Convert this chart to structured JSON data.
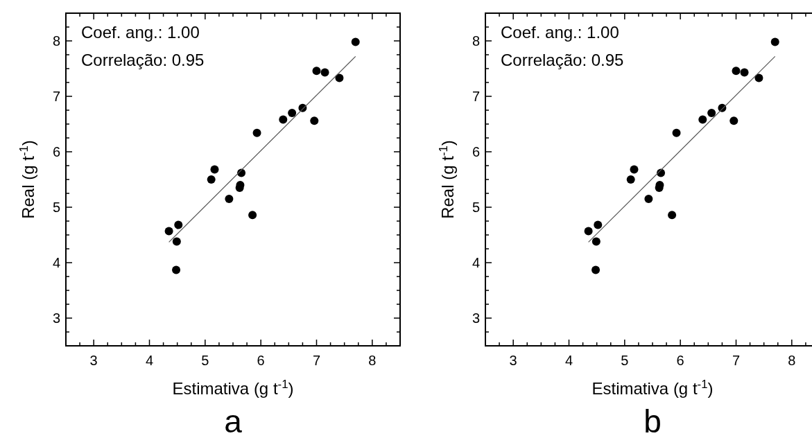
{
  "chart_data": [
    {
      "type": "scatter",
      "title": "a",
      "xlabel": "Estimativa (g t$^{-1}$)",
      "ylabel": "Real (g t$^{-1}$)",
      "annotations": [
        "Coef. ang.: 1.00",
        "Correlação: 0.95"
      ],
      "xlim": [
        2.5,
        8.5
      ],
      "ylim": [
        2.5,
        8.5
      ],
      "xticks": [
        {
          "value": 2.5,
          "label": null
        },
        {
          "value": 2.75,
          "label": null
        },
        3,
        {
          "value": 3.25,
          "label": null
        },
        {
          "value": 3.5,
          "label": null
        },
        {
          "value": 3.75,
          "label": null
        },
        4,
        {
          "value": 4.25,
          "label": null
        },
        {
          "value": 4.5,
          "label": null
        },
        {
          "value": 4.75,
          "label": null
        },
        5,
        {
          "value": 5.25,
          "label": null
        },
        {
          "value": 5.5,
          "label": null
        },
        {
          "value": 5.75,
          "label": null
        },
        6,
        {
          "value": 6.25,
          "label": null
        },
        {
          "value": 6.5,
          "label": null
        },
        {
          "value": 6.75,
          "label": null
        },
        7,
        {
          "value": 7.25,
          "label": null
        },
        {
          "value": 7.5,
          "label": null
        },
        {
          "value": 7.75,
          "label": null
        },
        8,
        {
          "value": 8.25,
          "label": null
        },
        {
          "value": 8.5,
          "label": null
        }
      ],
      "yticks": [
        {
          "value": 2.5,
          "label": null
        },
        {
          "value": 2.75,
          "label": null
        },
        3,
        {
          "value": 3.25,
          "label": null
        },
        {
          "value": 3.5,
          "label": null
        },
        {
          "value": 3.75,
          "label": null
        },
        4,
        {
          "value": 4.25,
          "label": null
        },
        {
          "value": 4.5,
          "label": null
        },
        {
          "value": 4.75,
          "label": null
        },
        5,
        {
          "value": 5.25,
          "label": null
        },
        {
          "value": 5.5,
          "label": null
        },
        {
          "value": 5.75,
          "label": null
        },
        6,
        {
          "value": 6.25,
          "label": null
        },
        {
          "value": 6.5,
          "label": null
        },
        {
          "value": 6.75,
          "label": null
        },
        7,
        {
          "value": 7.25,
          "label": null
        },
        {
          "value": 7.5,
          "label": null
        },
        {
          "value": 7.75,
          "label": null
        },
        8,
        {
          "value": 8.25,
          "label": null
        },
        {
          "value": 8.5,
          "label": null
        }
      ],
      "grid": false,
      "marker": "circle",
      "series": [
        {
          "color": "#000000",
          "x": [
            4.35,
            4.52,
            4.49,
            4.48,
            5.11,
            5.17,
            5.43,
            5.62,
            5.63,
            5.65,
            5.85,
            5.93,
            6.4,
            6.56,
            6.75,
            6.96,
            7.0,
            7.15,
            7.41,
            7.7
          ],
          "values": [
            4.57,
            4.68,
            4.38,
            3.87,
            5.5,
            5.68,
            5.15,
            5.35,
            5.4,
            5.62,
            4.86,
            6.34,
            6.58,
            6.7,
            6.79,
            6.56,
            7.46,
            7.43,
            7.33,
            7.98
          ]
        },
        {
          "type": "line",
          "color": "#555555",
          "marker": "none",
          "x": [
            4.35,
            7.7
          ],
          "values": [
            4.37,
            7.72
          ]
        }
      ]
    },
    {
      "type": "scatter",
      "title": "b",
      "xlabel": "Estimativa (g t$^{-1}$)",
      "ylabel": "Real (g t$^{-1}$)",
      "annotations": [
        "Coef. ang.: 1.00",
        "Correlação: 0.95"
      ],
      "xlim": [
        2.5,
        8.5
      ],
      "ylim": [
        2.5,
        8.5
      ],
      "xticks": [
        {
          "value": 2.5,
          "label": null
        },
        {
          "value": 2.75,
          "label": null
        },
        3,
        {
          "value": 3.25,
          "label": null
        },
        {
          "value": 3.5,
          "label": null
        },
        {
          "value": 3.75,
          "label": null
        },
        4,
        {
          "value": 4.25,
          "label": null
        },
        {
          "value": 4.5,
          "label": null
        },
        {
          "value": 4.75,
          "label": null
        },
        5,
        {
          "value": 5.25,
          "label": null
        },
        {
          "value": 5.5,
          "label": null
        },
        {
          "value": 5.75,
          "label": null
        },
        6,
        {
          "value": 6.25,
          "label": null
        },
        {
          "value": 6.5,
          "label": null
        },
        {
          "value": 6.75,
          "label": null
        },
        7,
        {
          "value": 7.25,
          "label": null
        },
        {
          "value": 7.5,
          "label": null
        },
        {
          "value": 7.75,
          "label": null
        },
        8,
        {
          "value": 8.25,
          "label": null
        },
        {
          "value": 8.5,
          "label": null
        }
      ],
      "yticks": [
        {
          "value": 2.5,
          "label": null
        },
        {
          "value": 2.75,
          "label": null
        },
        3,
        {
          "value": 3.25,
          "label": null
        },
        {
          "value": 3.5,
          "label": null
        },
        {
          "value": 3.75,
          "label": null
        },
        4,
        {
          "value": 4.25,
          "label": null
        },
        {
          "value": 4.5,
          "label": null
        },
        {
          "value": 4.75,
          "label": null
        },
        5,
        {
          "value": 5.25,
          "label": null
        },
        {
          "value": 5.5,
          "label": null
        },
        {
          "value": 5.75,
          "label": null
        },
        6,
        {
          "value": 6.25,
          "label": null
        },
        {
          "value": 6.5,
          "label": null
        },
        {
          "value": 6.75,
          "label": null
        },
        7,
        {
          "value": 7.25,
          "label": null
        },
        {
          "value": 7.5,
          "label": null
        },
        {
          "value": 7.75,
          "label": null
        },
        8,
        {
          "value": 8.25,
          "label": null
        },
        {
          "value": 8.5,
          "label": null
        }
      ],
      "grid": false,
      "marker": "circle",
      "series": [
        {
          "color": "#000000",
          "x": [
            4.35,
            4.52,
            4.49,
            4.48,
            5.11,
            5.17,
            5.43,
            5.62,
            5.63,
            5.65,
            5.85,
            5.93,
            6.4,
            6.56,
            6.75,
            6.96,
            7.0,
            7.15,
            7.41,
            7.7
          ],
          "values": [
            4.57,
            4.68,
            4.38,
            3.87,
            5.5,
            5.68,
            5.15,
            5.35,
            5.4,
            5.62,
            4.86,
            6.34,
            6.58,
            6.7,
            6.79,
            6.56,
            7.46,
            7.43,
            7.33,
            7.98
          ]
        },
        {
          "type": "line",
          "color": "#555555",
          "marker": "none",
          "x": [
            4.35,
            7.7
          ],
          "values": [
            4.37,
            7.72
          ]
        }
      ]
    }
  ]
}
